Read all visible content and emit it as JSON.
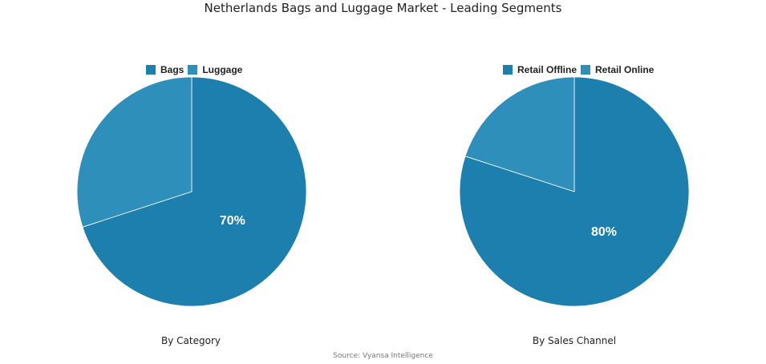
{
  "title": "Netherlands Bags and Luggage Market - Leading Segments",
  "source": "Source: Vyansa Intelligence",
  "chart_data": [
    {
      "type": "pie",
      "title": "By Category",
      "slices": [
        {
          "name": "Bags",
          "value": 70,
          "label": "70%",
          "color": "#1c7fae"
        },
        {
          "name": "Luggage",
          "value": 30,
          "label": "",
          "color": "#2e8fba"
        }
      ],
      "legend": "top"
    },
    {
      "type": "pie",
      "title": "By Sales Channel",
      "slices": [
        {
          "name": "Retail Offline",
          "value": 80,
          "label": "80%",
          "color": "#1c7fae"
        },
        {
          "name": "Retail Online",
          "value": 20,
          "label": "",
          "color": "#2e8fba"
        }
      ],
      "legend": "top"
    }
  ]
}
